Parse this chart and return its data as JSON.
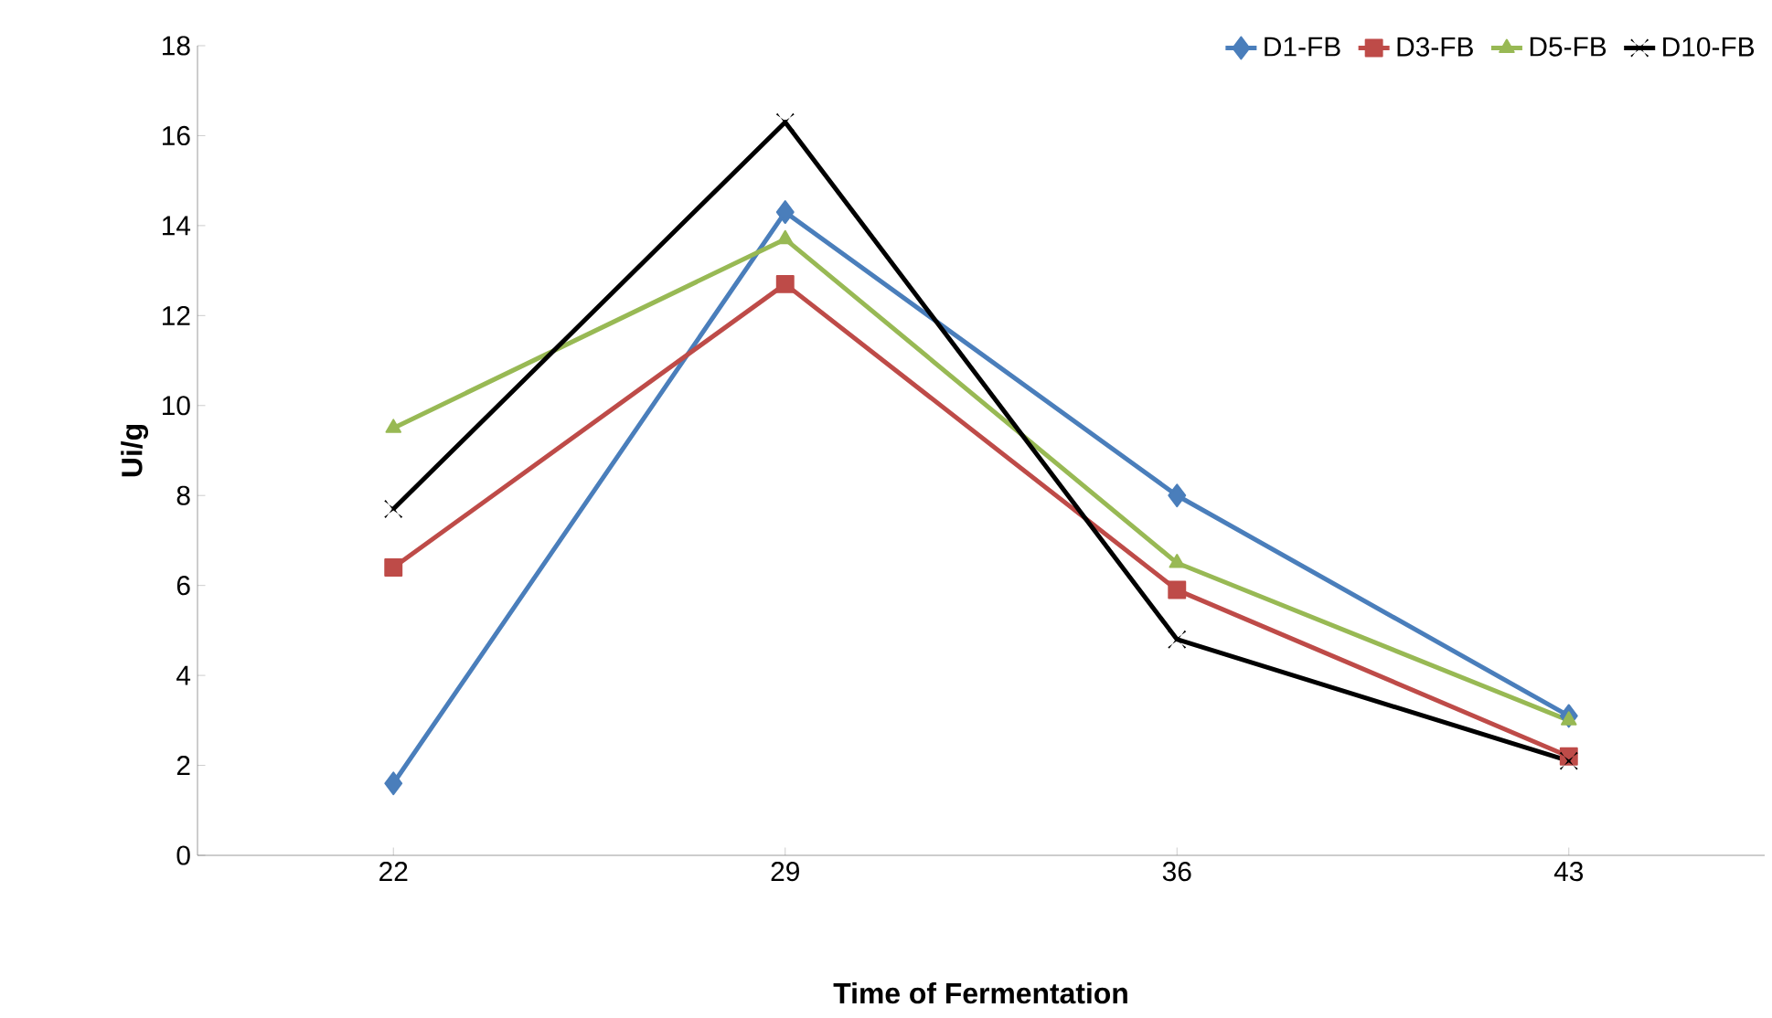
{
  "chart_data": {
    "type": "line",
    "xlabel": "Time of Fermentation",
    "ylabel": "Ui/g",
    "categories": [
      "22",
      "29",
      "36",
      "43"
    ],
    "ylim": [
      0,
      18
    ],
    "yticks": [
      0,
      2,
      4,
      6,
      8,
      10,
      12,
      14,
      16,
      18
    ],
    "grid": false,
    "legend": "top right",
    "series": [
      {
        "name": "D1-FB",
        "color": "#4a7ebb",
        "marker": "diamond",
        "values": [
          1.6,
          14.3,
          8.0,
          3.1
        ]
      },
      {
        "name": "D3-FB",
        "color": "#be4b48",
        "marker": "square",
        "values": [
          6.4,
          12.7,
          5.9,
          2.2
        ]
      },
      {
        "name": "D5-FB",
        "color": "#98b954",
        "marker": "triangle",
        "values": [
          9.5,
          13.7,
          6.5,
          3.0
        ]
      },
      {
        "name": "D10-FB",
        "color": "#000000",
        "marker": "cross",
        "values": [
          7.7,
          16.3,
          4.8,
          2.1
        ]
      }
    ]
  }
}
